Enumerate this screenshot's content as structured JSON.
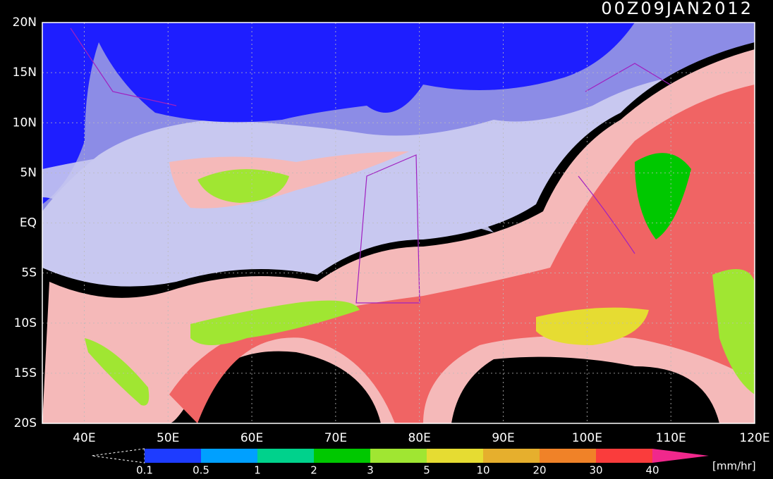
{
  "header": {
    "timestamp": "00Z09JAN2012"
  },
  "map": {
    "lat_labels": [
      "20N",
      "15N",
      "10N",
      "5N",
      "EQ",
      "5S",
      "10S",
      "15S",
      "20S"
    ],
    "lon_labels": [
      "40E",
      "50E",
      "60E",
      "70E",
      "80E",
      "90E",
      "100E",
      "110E",
      "120E"
    ]
  },
  "colorbar": {
    "labels": [
      "0.1",
      "0.5",
      "1",
      "2",
      "3",
      "5",
      "10",
      "20",
      "30",
      "40"
    ],
    "colors": [
      "#1e3cff",
      "#00a0ff",
      "#00d28c",
      "#00c800",
      "#a0e632",
      "#e6dc32",
      "#e6af2d",
      "#f08228",
      "#fa3c3c"
    ],
    "over_color": "#f0288c",
    "unit": "[mm/hr]"
  }
}
